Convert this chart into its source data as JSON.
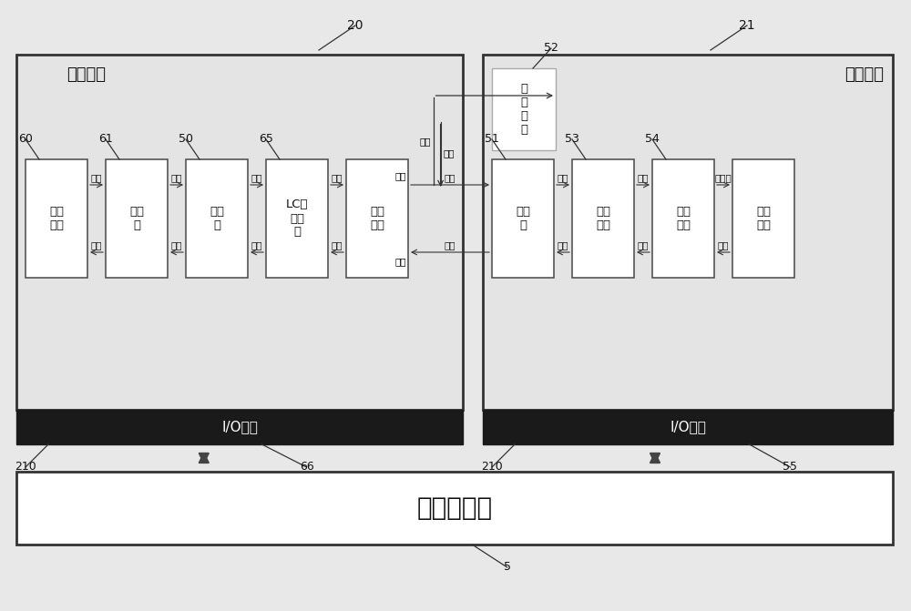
{
  "fig_width": 10.0,
  "fig_height": 6.71,
  "bg_color": "#e8e8e8",
  "board_bg": "#e0e0e0",
  "box_bg": "#ffffff",
  "board_edge": "#333333",
  "box_edge": "#666666",
  "io_bg": "#1a1a1a",
  "ctrl_bg": "#ffffff",
  "title1": "处理板一",
  "title2": "处理板二",
  "ctrl_text": "实物控制器",
  "io_text": "I/O接口",
  "num_20": "20",
  "num_21": "21",
  "num_5": "5",
  "num_52": "52",
  "num_60": "60",
  "num_61": "61",
  "num_50": "50",
  "num_65": "65",
  "num_51": "51",
  "num_53": "53",
  "num_54": "54",
  "num_210": "210",
  "num_66": "66",
  "num_55": "55",
  "lb0": "供电\n电源",
  "lb1": "变压\n器",
  "lb2": "整流\n器",
  "lb3": "LC谐\n振回\n路",
  "lb4": "支撑\n电容",
  "rb0": "逆变\n器",
  "rb1": "交流\n电机",
  "rb2": "轮轨\n模型",
  "rb3": "负载\n模型",
  "chop": "斩\n波\n回\n路",
  "v": "电压",
  "i": "电流",
  "t": "转矩",
  "s": "转速",
  "f": "牵引力",
  "vs": "车速"
}
